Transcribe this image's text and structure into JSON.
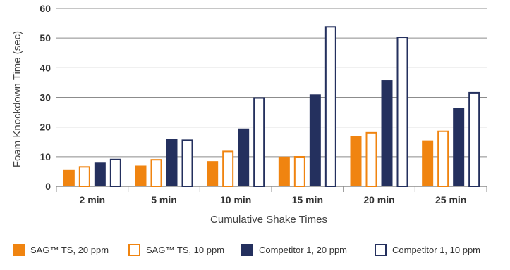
{
  "chart_data": {
    "type": "bar",
    "title": "",
    "xlabel": "Cumulative Shake Times",
    "ylabel": "Foam Knockdown Time (sec)",
    "ylim": [
      0,
      60
    ],
    "yticks": [
      "0",
      "10",
      "20",
      "30",
      "40",
      "50",
      "60"
    ],
    "grid": true,
    "legend_position": "bottom",
    "categories": [
      "2 min",
      "5 min",
      "10 min",
      "15 min",
      "20 min",
      "25 min"
    ],
    "series": [
      {
        "name": "SAG™ TS,  20 ppm",
        "style": "filled",
        "color": "#F08410",
        "values": [
          5.5,
          7,
          8.5,
          10,
          17,
          15.5
        ]
      },
      {
        "name": "SAG™ TS, 10 ppm",
        "style": "outline",
        "color": "#F08410",
        "values": [
          6.8,
          9.2,
          12,
          10.2,
          18.3,
          18.8
        ]
      },
      {
        "name": "Competitor 1, 20 ppm",
        "style": "filled",
        "color": "#24305E",
        "values": [
          8,
          16,
          19.5,
          31,
          35.8,
          26.5
        ]
      },
      {
        "name": "Competitor 1, 10 ppm",
        "style": "outline",
        "color": "#24305E",
        "values": [
          9.3,
          15.8,
          30,
          54,
          50.5,
          31.8
        ]
      }
    ],
    "colors": {
      "grid": "#8C8C8C",
      "axis_text": "#333333",
      "title_text": "#444444"
    }
  }
}
